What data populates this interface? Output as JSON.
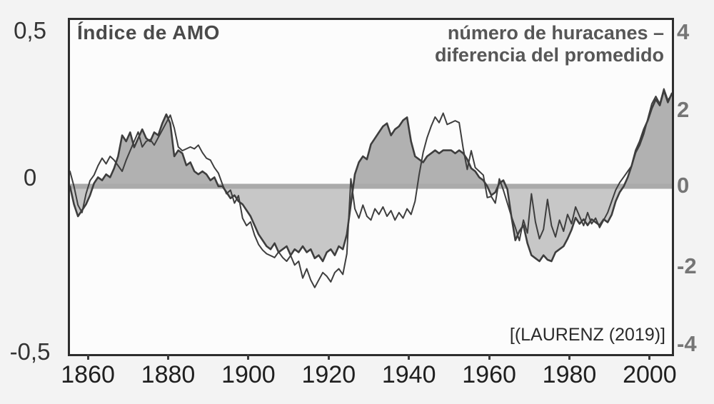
{
  "chart": {
    "titles": {
      "left": "Índice de AMO",
      "right_line1": "número de huracanes –",
      "right_line2": "diferencia del promedido"
    },
    "citation": "[(LAURENZ (2019)]",
    "left_axis": {
      "labels": [
        "0,5",
        "0",
        "-0,5"
      ]
    },
    "right_axis": {
      "labels": [
        "4",
        "2",
        "0",
        "-2",
        "-4"
      ]
    },
    "x_axis": {
      "tick_years": [
        1860,
        1880,
        1900,
        1920,
        1940,
        1960,
        1980,
        2000
      ],
      "labels": [
        "1860",
        "1880",
        "1900",
        "1920",
        "1940",
        "1960",
        "1980",
        "2000"
      ]
    },
    "colors": {
      "fill_above_zero": "#b1b1b1",
      "fill_below_zero": "#c7c7c7",
      "zero_band": "#aaaaaa",
      "curve_stroke": "#3e3e3e",
      "plot_background": "#fcfcfc",
      "page_background": "#f3f3f3",
      "border": "#2d2d2d"
    }
  },
  "chart_data": {
    "type": "line",
    "title_left": "Índice de AMO",
    "title_right": "número de huracanes – diferencia del promedido",
    "source": "[(LAURENZ (2019)]",
    "xlim": [
      1855,
      2005
    ],
    "left_ylim": [
      -0.5,
      0.5
    ],
    "right_ylim": [
      -4,
      4
    ],
    "zero_reference_line": 0,
    "grid": false,
    "x": [
      1855,
      1856,
      1857,
      1858,
      1859,
      1860,
      1861,
      1862,
      1863,
      1864,
      1865,
      1866,
      1867,
      1868,
      1869,
      1870,
      1871,
      1872,
      1873,
      1874,
      1875,
      1876,
      1877,
      1878,
      1879,
      1880,
      1881,
      1882,
      1883,
      1884,
      1885,
      1886,
      1887,
      1888,
      1889,
      1890,
      1891,
      1892,
      1893,
      1894,
      1895,
      1896,
      1897,
      1898,
      1899,
      1900,
      1901,
      1902,
      1903,
      1904,
      1905,
      1906,
      1907,
      1908,
      1909,
      1910,
      1911,
      1912,
      1913,
      1914,
      1915,
      1916,
      1917,
      1918,
      1919,
      1920,
      1921,
      1922,
      1923,
      1924,
      1925,
      1926,
      1927,
      1928,
      1929,
      1930,
      1931,
      1932,
      1933,
      1934,
      1935,
      1936,
      1937,
      1938,
      1939,
      1940,
      1941,
      1942,
      1943,
      1944,
      1945,
      1946,
      1947,
      1948,
      1949,
      1950,
      1951,
      1952,
      1953,
      1954,
      1955,
      1956,
      1957,
      1958,
      1959,
      1960,
      1961,
      1962,
      1963,
      1964,
      1965,
      1966,
      1967,
      1968,
      1969,
      1970,
      1971,
      1972,
      1973,
      1974,
      1975,
      1976,
      1977,
      1978,
      1979,
      1980,
      1981,
      1982,
      1983,
      1984,
      1985,
      1986,
      1987,
      1988,
      1989,
      1990,
      1991,
      1992,
      1993,
      1994,
      1995,
      1996,
      1997,
      1998,
      1999,
      2000,
      2001,
      2002,
      2003,
      2004,
      2005
    ],
    "series": [
      {
        "name": "Índice de AMO",
        "axis": "left",
        "style": "area-filled-to-zero",
        "values": [
          0.0,
          -0.06,
          -0.1,
          -0.08,
          -0.06,
          -0.03,
          0.01,
          0.03,
          0.02,
          0.04,
          0.03,
          0.06,
          0.1,
          0.17,
          0.15,
          0.18,
          0.13,
          0.16,
          0.19,
          0.16,
          0.15,
          0.18,
          0.17,
          0.21,
          0.24,
          0.21,
          0.1,
          0.12,
          0.11,
          0.07,
          0.08,
          0.05,
          0.04,
          0.05,
          0.04,
          0.02,
          0.03,
          0.0,
          0.0,
          -0.02,
          -0.04,
          -0.03,
          -0.05,
          -0.06,
          -0.08,
          -0.1,
          -0.13,
          -0.16,
          -0.18,
          -0.2,
          -0.21,
          -0.19,
          -0.22,
          -0.21,
          -0.2,
          -0.23,
          -0.21,
          -0.22,
          -0.2,
          -0.22,
          -0.21,
          -0.24,
          -0.23,
          -0.25,
          -0.22,
          -0.21,
          -0.23,
          -0.2,
          -0.21,
          -0.16,
          -0.06,
          0.04,
          0.08,
          0.1,
          0.09,
          0.14,
          0.16,
          0.18,
          0.2,
          0.21,
          0.17,
          0.19,
          0.2,
          0.22,
          0.23,
          0.15,
          0.1,
          0.09,
          0.08,
          0.1,
          0.11,
          0.12,
          0.11,
          0.12,
          0.12,
          0.12,
          0.11,
          0.12,
          0.11,
          0.09,
          0.06,
          0.05,
          0.03,
          0.02,
          0.0,
          -0.03,
          -0.02,
          0.01,
          0.02,
          -0.01,
          -0.1,
          -0.18,
          -0.15,
          -0.13,
          -0.19,
          -0.23,
          -0.24,
          -0.25,
          -0.23,
          -0.245,
          -0.25,
          -0.22,
          -0.21,
          -0.2,
          -0.175,
          -0.145,
          -0.105,
          -0.125,
          -0.11,
          -0.13,
          -0.11,
          -0.12,
          -0.13,
          -0.11,
          -0.12,
          -0.095,
          -0.05,
          -0.02,
          0.0,
          0.03,
          0.07,
          0.12,
          0.15,
          0.19,
          0.22,
          0.26,
          0.29,
          0.27,
          0.32,
          0.28,
          0.31
        ]
      },
      {
        "name": "número de huracanes – diferencia del promedido",
        "axis": "right",
        "style": "line",
        "values": [
          0.4,
          0.0,
          -0.5,
          -0.7,
          -0.2,
          0.15,
          0.3,
          0.55,
          0.75,
          0.6,
          0.8,
          0.7,
          0.55,
          0.4,
          0.7,
          0.95,
          1.2,
          1.45,
          1.05,
          1.2,
          1.25,
          1.1,
          1.3,
          1.5,
          1.7,
          1.9,
          1.55,
          1.05,
          0.95,
          1.0,
          1.05,
          1.0,
          1.1,
          0.9,
          0.75,
          0.7,
          0.5,
          0.35,
          0.05,
          -0.2,
          -0.1,
          -0.45,
          -0.25,
          -0.85,
          -1.05,
          -0.95,
          -1.3,
          -1.55,
          -1.7,
          -1.8,
          -1.85,
          -1.9,
          -1.75,
          -1.9,
          -2.0,
          -1.85,
          -2.1,
          -2.0,
          -2.45,
          -2.2,
          -2.5,
          -2.7,
          -2.5,
          -2.3,
          -2.4,
          -2.55,
          -2.3,
          -2.2,
          -2.35,
          -1.8,
          0.2,
          -0.6,
          -0.85,
          -0.5,
          -0.8,
          -0.9,
          -0.6,
          -0.75,
          -0.55,
          -0.8,
          -0.65,
          -0.9,
          -0.7,
          -0.85,
          -0.6,
          -0.75,
          -0.4,
          0.3,
          0.9,
          1.3,
          1.6,
          1.85,
          1.7,
          1.95,
          1.65,
          1.7,
          1.75,
          1.7,
          1.0,
          0.45,
          0.95,
          0.5,
          0.4,
          0.3,
          -0.3,
          -0.27,
          -0.45,
          0.2,
          -0.1,
          -0.45,
          -0.8,
          -1.1,
          -1.45,
          -0.9,
          -1.25,
          -0.2,
          -0.95,
          -1.4,
          -1.15,
          -0.35,
          -1.05,
          -1.35,
          -0.9,
          -1.2,
          -0.75,
          -1.0,
          -0.55,
          -0.8,
          -1.05,
          -0.7,
          -1.0,
          -0.85,
          -1.1,
          -0.9,
          -0.7,
          -0.4,
          -0.1,
          0.1,
          0.25,
          0.4,
          0.55,
          0.9,
          1.1,
          1.4,
          1.8,
          2.2,
          2.4,
          2.2,
          2.6,
          2.3,
          2.45
        ]
      }
    ]
  }
}
